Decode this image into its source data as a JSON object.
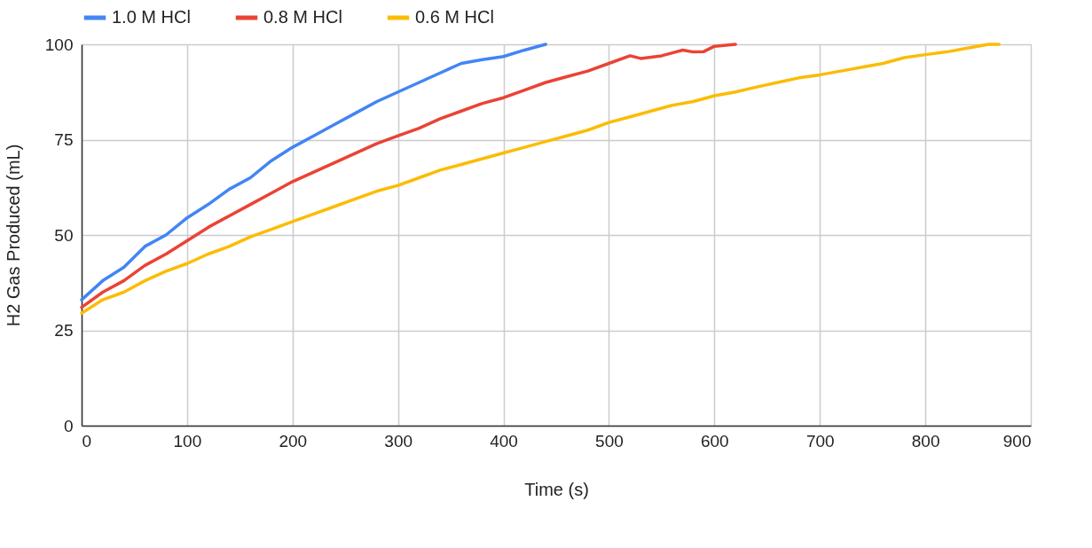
{
  "chart_data": {
    "type": "line",
    "xlabel": "Time (s)",
    "ylabel": "H2 Gas Produced (mL)",
    "xlim": [
      0,
      900
    ],
    "xticks": [
      0,
      100,
      200,
      300,
      400,
      500,
      600,
      700,
      800,
      900
    ],
    "ylim": [
      0,
      100
    ],
    "yticks": [
      0,
      25,
      50,
      75,
      100
    ],
    "grid": true,
    "legend": "top",
    "marker": "none",
    "line_style": "solid",
    "series": [
      {
        "name": "1.0 M HCl",
        "color": "#4285f4",
        "x": [
          0,
          20,
          40,
          60,
          80,
          100,
          120,
          140,
          160,
          180,
          200,
          220,
          240,
          260,
          280,
          300,
          320,
          340,
          360,
          380,
          400,
          420,
          440
        ],
        "values": [
          33,
          38,
          41.5,
          47,
          50,
          54.5,
          58,
          62,
          65,
          69.5,
          73,
          76,
          79,
          82,
          85,
          87.5,
          90,
          92.5,
          95,
          96,
          96.8,
          98.5,
          100
        ]
      },
      {
        "name": "0.8 M HCl",
        "color": "#ea4335",
        "x": [
          0,
          20,
          40,
          60,
          80,
          100,
          120,
          140,
          160,
          180,
          200,
          220,
          240,
          260,
          280,
          300,
          320,
          340,
          360,
          380,
          400,
          420,
          440,
          460,
          480,
          500,
          520,
          530,
          550,
          570,
          580,
          590,
          600,
          620
        ],
        "values": [
          31,
          35,
          38,
          42,
          45,
          48.5,
          52,
          55,
          58,
          61,
          64,
          66.5,
          69,
          71.5,
          74,
          76,
          78,
          80.5,
          82.5,
          84.5,
          86,
          88,
          90,
          91.5,
          93,
          95,
          97,
          96.3,
          97,
          98.5,
          98,
          98.1,
          99.5,
          100
        ]
      },
      {
        "name": "0.6 M HCl",
        "color": "#fbbc04",
        "x": [
          0,
          20,
          40,
          60,
          80,
          100,
          120,
          140,
          160,
          180,
          200,
          220,
          240,
          260,
          280,
          300,
          320,
          340,
          360,
          380,
          400,
          420,
          440,
          460,
          480,
          500,
          520,
          540,
          560,
          580,
          600,
          620,
          640,
          660,
          680,
          700,
          720,
          740,
          760,
          780,
          800,
          820,
          840,
          860,
          870
        ],
        "values": [
          29.5,
          33,
          35,
          38,
          40.5,
          42.5,
          45,
          47,
          49.5,
          51.5,
          53.5,
          55.5,
          57.5,
          59.5,
          61.5,
          63,
          65,
          67,
          68.5,
          70,
          71.5,
          73,
          74.5,
          76,
          77.5,
          79.5,
          81,
          82.5,
          84,
          85,
          86.5,
          87.5,
          88.8,
          90,
          91.2,
          92,
          93,
          94,
          95,
          96.5,
          97.3,
          98,
          99,
          100,
          100
        ]
      }
    ]
  }
}
